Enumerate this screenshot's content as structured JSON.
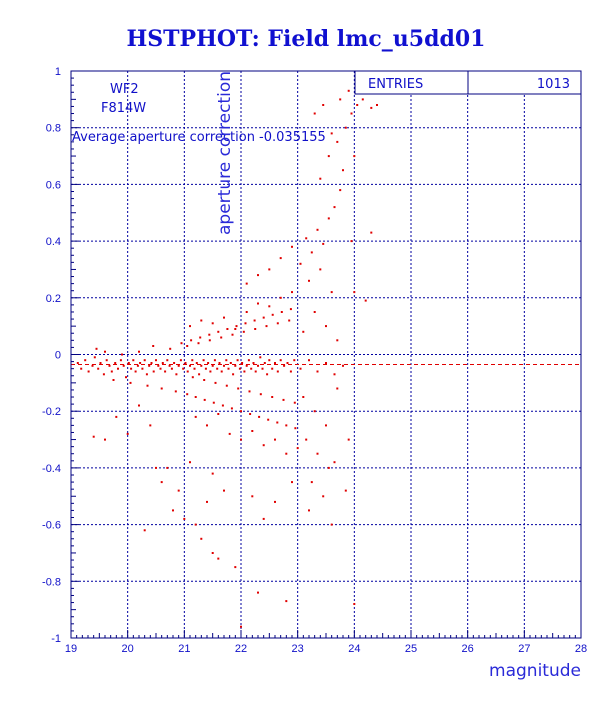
{
  "chart_data": {
    "type": "scatter",
    "title": "HSTPHOT: Field lmc_u5dd01",
    "xlabel": "magnitude",
    "ylabel": "aperture correction",
    "xlim": [
      19,
      28
    ],
    "ylim": [
      -1,
      1
    ],
    "x_ticks": [
      "19",
      "20",
      "21",
      "22",
      "23",
      "24",
      "25",
      "26",
      "27",
      "28"
    ],
    "y_ticks": [
      "1",
      "0.8",
      "0.6",
      "0.4",
      "0.2",
      "0",
      "-0.2",
      "-0.4",
      "-0.6",
      "-0.8",
      "-1"
    ],
    "grid": true,
    "marker_color": "#e00000",
    "grid_color": "#0000a0",
    "text_color": "#1010c8",
    "annotations": {
      "camera": "WF2",
      "filter": "F814W",
      "average_text": "Average aperture correction -0.035155"
    },
    "stats_box": {
      "label": "ENTRIES",
      "value": "1013"
    },
    "average_line": {
      "y": -0.035155
    },
    "points": [
      [
        19.12,
        -0.03
      ],
      [
        19.18,
        -0.05
      ],
      [
        19.25,
        -0.02
      ],
      [
        19.31,
        -0.06
      ],
      [
        19.38,
        -0.04
      ],
      [
        19.42,
        -0.01
      ],
      [
        19.48,
        -0.05
      ],
      [
        19.52,
        -0.03
      ],
      [
        19.58,
        -0.07
      ],
      [
        19.63,
        -0.02
      ],
      [
        19.68,
        -0.04
      ],
      [
        19.72,
        -0.06
      ],
      [
        19.78,
        -0.03
      ],
      [
        19.83,
        -0.05
      ],
      [
        19.88,
        -0.02
      ],
      [
        19.93,
        -0.04
      ],
      [
        19.97,
        -0.08
      ],
      [
        20.02,
        -0.03
      ],
      [
        20.06,
        -0.05
      ],
      [
        20.1,
        -0.02
      ],
      [
        20.14,
        -0.06
      ],
      [
        20.18,
        -0.04
      ],
      [
        20.22,
        -0.03
      ],
      [
        20.26,
        -0.05
      ],
      [
        20.3,
        -0.02
      ],
      [
        20.34,
        -0.07
      ],
      [
        20.38,
        -0.04
      ],
      [
        20.42,
        -0.03
      ],
      [
        20.46,
        -0.06
      ],
      [
        20.5,
        -0.02
      ],
      [
        20.54,
        -0.04
      ],
      [
        20.58,
        -0.05
      ],
      [
        20.62,
        -0.03
      ],
      [
        20.66,
        -0.06
      ],
      [
        20.7,
        -0.02
      ],
      [
        20.74,
        -0.04
      ],
      [
        20.78,
        -0.05
      ],
      [
        20.82,
        -0.03
      ],
      [
        20.86,
        -0.07
      ],
      [
        20.9,
        -0.04
      ],
      [
        20.94,
        -0.02
      ],
      [
        20.98,
        -0.05
      ],
      [
        21.02,
        -0.03
      ],
      [
        21.06,
        -0.06
      ],
      [
        21.1,
        -0.04
      ],
      [
        21.14,
        -0.02
      ],
      [
        21.18,
        -0.05
      ],
      [
        21.22,
        -0.03
      ],
      [
        21.26,
        -0.07
      ],
      [
        21.3,
        -0.04
      ],
      [
        21.34,
        -0.02
      ],
      [
        21.38,
        -0.05
      ],
      [
        21.42,
        -0.03
      ],
      [
        21.46,
        -0.06
      ],
      [
        21.5,
        -0.04
      ],
      [
        21.54,
        -0.02
      ],
      [
        21.58,
        -0.05
      ],
      [
        21.62,
        -0.03
      ],
      [
        21.66,
        -0.06
      ],
      [
        21.7,
        -0.04
      ],
      [
        21.74,
        -0.02
      ],
      [
        21.78,
        -0.05
      ],
      [
        21.82,
        -0.03
      ],
      [
        21.86,
        -0.07
      ],
      [
        21.9,
        -0.04
      ],
      [
        21.94,
        -0.02
      ],
      [
        21.98,
        -0.05
      ],
      [
        22.02,
        -0.03
      ],
      [
        22.06,
        -0.06
      ],
      [
        22.1,
        -0.04
      ],
      [
        22.14,
        -0.02
      ],
      [
        22.18,
        -0.05
      ],
      [
        22.22,
        -0.03
      ],
      [
        22.26,
        -0.06
      ],
      [
        22.3,
        -0.04
      ],
      [
        22.34,
        -0.01
      ],
      [
        22.38,
        -0.05
      ],
      [
        22.42,
        -0.03
      ],
      [
        22.46,
        -0.07
      ],
      [
        22.5,
        -0.02
      ],
      [
        22.55,
        -0.05
      ],
      [
        22.6,
        -0.03
      ],
      [
        22.65,
        -0.06
      ],
      [
        22.7,
        -0.02
      ],
      [
        22.76,
        -0.04
      ],
      [
        22.82,
        -0.03
      ],
      [
        22.88,
        -0.06
      ],
      [
        22.94,
        -0.02
      ],
      [
        19.45,
        0.02
      ],
      [
        19.6,
        0.01
      ],
      [
        19.75,
        -0.09
      ],
      [
        19.9,
        0.0
      ],
      [
        20.05,
        -0.1
      ],
      [
        20.2,
        0.01
      ],
      [
        20.35,
        -0.11
      ],
      [
        20.45,
        0.03
      ],
      [
        20.6,
        -0.12
      ],
      [
        20.75,
        0.02
      ],
      [
        20.85,
        -0.13
      ],
      [
        20.95,
        0.04
      ],
      [
        21.05,
        -0.14
      ],
      [
        21.12,
        0.05
      ],
      [
        21.2,
        -0.15
      ],
      [
        21.28,
        0.06
      ],
      [
        21.36,
        -0.16
      ],
      [
        21.44,
        0.07
      ],
      [
        21.52,
        -0.17
      ],
      [
        21.6,
        0.08
      ],
      [
        21.68,
        -0.18
      ],
      [
        21.76,
        0.09
      ],
      [
        21.84,
        -0.19
      ],
      [
        21.92,
        0.1
      ],
      [
        22.0,
        -0.2
      ],
      [
        22.08,
        0.11
      ],
      [
        22.16,
        -0.21
      ],
      [
        22.24,
        0.12
      ],
      [
        22.32,
        -0.22
      ],
      [
        22.4,
        0.13
      ],
      [
        22.48,
        -0.23
      ],
      [
        22.56,
        0.14
      ],
      [
        22.64,
        -0.24
      ],
      [
        22.72,
        0.15
      ],
      [
        22.8,
        -0.25
      ],
      [
        22.88,
        0.16
      ],
      [
        22.96,
        -0.26
      ],
      [
        21.05,
        0.03
      ],
      [
        21.15,
        -0.08
      ],
      [
        21.25,
        0.04
      ],
      [
        21.35,
        -0.09
      ],
      [
        21.45,
        0.05
      ],
      [
        21.55,
        -0.1
      ],
      [
        21.65,
        0.06
      ],
      [
        21.75,
        -0.11
      ],
      [
        21.85,
        0.07
      ],
      [
        21.95,
        -0.12
      ],
      [
        22.05,
        0.08
      ],
      [
        22.15,
        -0.13
      ],
      [
        22.25,
        0.09
      ],
      [
        22.35,
        -0.14
      ],
      [
        22.45,
        0.1
      ],
      [
        22.55,
        -0.15
      ],
      [
        22.65,
        0.11
      ],
      [
        22.75,
        -0.16
      ],
      [
        22.85,
        0.12
      ],
      [
        22.95,
        -0.17
      ],
      [
        21.1,
        0.1
      ],
      [
        21.3,
        0.12
      ],
      [
        21.5,
        0.11
      ],
      [
        21.7,
        0.13
      ],
      [
        21.9,
        0.09
      ],
      [
        22.1,
        0.15
      ],
      [
        22.3,
        0.18
      ],
      [
        22.5,
        0.17
      ],
      [
        22.7,
        0.2
      ],
      [
        22.9,
        0.22
      ],
      [
        21.2,
        -0.22
      ],
      [
        21.4,
        -0.25
      ],
      [
        21.6,
        -0.21
      ],
      [
        21.8,
        -0.28
      ],
      [
        22.0,
        -0.3
      ],
      [
        22.2,
        -0.27
      ],
      [
        22.4,
        -0.32
      ],
      [
        22.6,
        -0.3
      ],
      [
        22.8,
        -0.35
      ],
      [
        23.0,
        -0.33
      ],
      [
        22.1,
        0.25
      ],
      [
        22.3,
        0.28
      ],
      [
        22.5,
        0.3
      ],
      [
        22.7,
        0.34
      ],
      [
        22.9,
        0.38
      ],
      [
        23.05,
        0.32
      ],
      [
        23.15,
        0.41
      ],
      [
        23.25,
        0.36
      ],
      [
        23.35,
        0.44
      ],
      [
        23.45,
        0.39
      ],
      [
        23.55,
        0.48
      ],
      [
        23.65,
        0.52
      ],
      [
        23.75,
        0.58
      ],
      [
        23.2,
        0.26
      ],
      [
        23.4,
        0.3
      ],
      [
        23.6,
        0.22
      ],
      [
        23.3,
        0.15
      ],
      [
        23.5,
        0.1
      ],
      [
        23.7,
        0.05
      ],
      [
        23.1,
        0.08
      ],
      [
        23.05,
        -0.05
      ],
      [
        23.2,
        -0.02
      ],
      [
        23.35,
        -0.06
      ],
      [
        23.5,
        -0.03
      ],
      [
        23.65,
        -0.07
      ],
      [
        23.8,
        -0.04
      ],
      [
        23.1,
        -0.15
      ],
      [
        23.3,
        -0.2
      ],
      [
        23.5,
        -0.25
      ],
      [
        23.7,
        -0.12
      ],
      [
        23.15,
        -0.3
      ],
      [
        23.35,
        -0.35
      ],
      [
        23.55,
        -0.4
      ],
      [
        23.25,
        -0.45
      ],
      [
        23.45,
        -0.5
      ],
      [
        23.65,
        -0.38
      ],
      [
        23.85,
        -0.48
      ],
      [
        23.2,
        -0.55
      ],
      [
        23.6,
        -0.6
      ],
      [
        23.9,
        -0.3
      ],
      [
        23.4,
        0.62
      ],
      [
        23.55,
        0.7
      ],
      [
        23.7,
        0.75
      ],
      [
        23.85,
        0.8
      ],
      [
        23.95,
        0.85
      ],
      [
        24.05,
        0.88
      ],
      [
        24.15,
        0.9
      ],
      [
        24.3,
        0.87
      ],
      [
        24.4,
        0.88
      ],
      [
        24.3,
        0.43
      ],
      [
        23.3,
        0.85
      ],
      [
        23.45,
        0.88
      ],
      [
        23.6,
        0.78
      ],
      [
        23.75,
        0.9
      ],
      [
        23.9,
        0.93
      ],
      [
        24.0,
        0.7
      ],
      [
        23.8,
        0.65
      ],
      [
        23.95,
        0.4
      ],
      [
        24.2,
        0.19
      ],
      [
        24.0,
        0.22
      ],
      [
        24.0,
        -0.88
      ],
      [
        22.0,
        -0.96
      ],
      [
        22.3,
        -0.84
      ],
      [
        22.8,
        -0.87
      ],
      [
        21.9,
        -0.75
      ],
      [
        21.5,
        -0.7
      ],
      [
        21.3,
        -0.65
      ],
      [
        21.6,
        -0.72
      ],
      [
        20.8,
        -0.55
      ],
      [
        20.9,
        -0.48
      ],
      [
        20.5,
        -0.4
      ],
      [
        20.6,
        -0.45
      ],
      [
        21.0,
        -0.58
      ],
      [
        21.2,
        -0.6
      ],
      [
        21.4,
        -0.52
      ],
      [
        21.7,
        -0.48
      ],
      [
        22.2,
        -0.5
      ],
      [
        22.4,
        -0.58
      ],
      [
        22.6,
        -0.52
      ],
      [
        22.9,
        -0.45
      ],
      [
        19.4,
        -0.29
      ],
      [
        19.6,
        -0.3
      ],
      [
        19.8,
        -0.22
      ],
      [
        20.0,
        -0.28
      ],
      [
        20.2,
        -0.18
      ],
      [
        20.4,
        -0.25
      ],
      [
        20.3,
        -0.62
      ],
      [
        20.7,
        -0.4
      ],
      [
        21.1,
        -0.38
      ],
      [
        21.5,
        -0.42
      ]
    ]
  }
}
